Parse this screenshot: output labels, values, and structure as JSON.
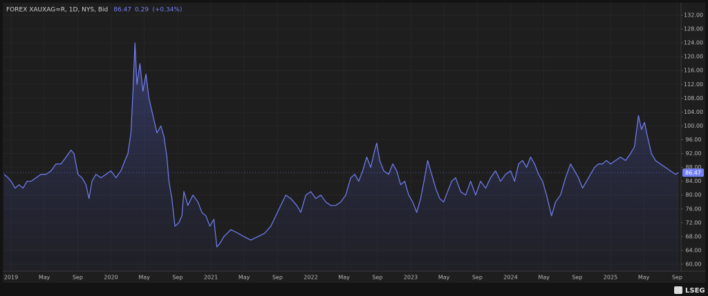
{
  "chart_data": {
    "type": "line",
    "title": "FOREX XAUXAG=R, 1D, NYS, Bid",
    "last": 86.47,
    "change": 0.29,
    "change_pct": "(+0.34%)",
    "brand": "LSEG",
    "x": [
      2018.93,
      2018.97,
      2019.0,
      2019.04,
      2019.08,
      2019.12,
      2019.16,
      2019.2,
      2019.25,
      2019.3,
      2019.35,
      2019.4,
      2019.45,
      2019.5,
      2019.55,
      2019.6,
      2019.63,
      2019.67,
      2019.71,
      2019.75,
      2019.78,
      2019.81,
      2019.85,
      2019.9,
      2019.95,
      2020.0,
      2020.05,
      2020.1,
      2020.14,
      2020.17,
      2020.2,
      2020.22,
      2020.24,
      2020.26,
      2020.29,
      2020.32,
      2020.35,
      2020.38,
      2020.42,
      2020.46,
      2020.5,
      2020.53,
      2020.56,
      2020.58,
      2020.61,
      2020.64,
      2020.68,
      2020.71,
      2020.73,
      2020.77,
      2020.82,
      2020.87,
      2020.91,
      2020.95,
      2020.99,
      2021.03,
      2021.06,
      2021.09,
      2021.13,
      2021.2,
      2021.27,
      2021.33,
      2021.4,
      2021.47,
      2021.54,
      2021.6,
      2021.65,
      2021.7,
      2021.75,
      2021.8,
      2021.86,
      2021.9,
      2021.95,
      2022.0,
      2022.05,
      2022.1,
      2022.15,
      2022.2,
      2022.25,
      2022.3,
      2022.35,
      2022.4,
      2022.44,
      2022.48,
      2022.52,
      2022.56,
      2022.6,
      2022.64,
      2022.66,
      2022.69,
      2022.73,
      2022.78,
      2022.82,
      2022.86,
      2022.9,
      2022.94,
      2022.98,
      2023.02,
      2023.06,
      2023.1,
      2023.14,
      2023.17,
      2023.21,
      2023.25,
      2023.29,
      2023.33,
      2023.37,
      2023.41,
      2023.45,
      2023.5,
      2023.55,
      2023.6,
      2023.65,
      2023.7,
      2023.75,
      2023.8,
      2023.85,
      2023.9,
      2023.95,
      2024.0,
      2024.04,
      2024.08,
      2024.12,
      2024.16,
      2024.2,
      2024.24,
      2024.28,
      2024.32,
      2024.36,
      2024.41,
      2024.45,
      2024.5,
      2024.55,
      2024.6,
      2024.64,
      2024.68,
      2024.72,
      2024.76,
      2024.8,
      2024.84,
      2024.88,
      2024.92,
      2024.96,
      2025.0,
      2025.05,
      2025.1,
      2025.15,
      2025.2,
      2025.24,
      2025.28,
      2025.31,
      2025.34,
      2025.37,
      2025.41,
      2025.45,
      2025.5,
      2025.55,
      2025.6,
      2025.65,
      2025.68
    ],
    "series": [
      {
        "color": "#7381f5",
        "values": [
          86,
          85,
          84,
          82,
          83,
          82,
          84,
          84,
          85,
          86,
          86,
          87,
          89,
          89,
          91,
          93,
          92,
          86,
          85,
          83,
          79,
          84,
          86,
          85,
          86,
          87,
          85,
          87,
          90,
          92,
          98,
          110,
          124,
          112,
          118,
          110,
          115,
          108,
          103,
          98,
          100,
          97,
          91,
          84,
          79,
          71,
          72,
          74,
          81,
          77,
          80,
          78,
          75,
          74,
          71,
          73,
          65,
          66,
          68,
          70,
          69,
          68,
          67,
          68,
          69,
          71,
          74,
          77,
          80,
          79,
          77,
          75,
          80,
          81,
          79,
          80,
          78,
          77,
          77,
          78,
          80,
          85,
          86,
          84,
          87,
          91,
          88,
          93,
          95,
          90,
          87,
          86,
          89,
          87,
          83,
          84,
          80,
          78,
          75,
          79,
          85,
          90,
          86,
          82,
          79,
          78,
          81,
          84,
          85,
          81,
          80,
          84,
          80,
          84,
          82,
          85,
          87,
          84,
          86,
          87,
          84,
          89,
          90,
          88,
          91,
          89,
          86,
          84,
          80,
          74,
          78,
          80,
          85,
          89,
          87,
          85,
          82,
          84,
          86,
          88,
          89,
          89,
          90,
          89,
          90,
          91,
          90,
          92,
          94,
          103,
          99,
          101,
          97,
          92,
          90,
          89,
          88,
          87,
          86,
          86.47
        ]
      }
    ],
    "xlim": [
      2018.924,
      2025.706
    ],
    "ylim": [
      58,
      134.8
    ],
    "xticks": [
      2019,
      {
        "value": 2019.333,
        "label": "May"
      },
      {
        "value": 2019.667,
        "label": "Sep"
      },
      2020,
      {
        "value": 2020.333,
        "label": "May"
      },
      {
        "value": 2020.667,
        "label": "Sep"
      },
      2021,
      {
        "value": 2021.333,
        "label": "May"
      },
      {
        "value": 2021.667,
        "label": "Sep"
      },
      2022,
      {
        "value": 2022.333,
        "label": "May"
      },
      {
        "value": 2022.667,
        "label": "Sep"
      },
      2023,
      {
        "value": 2023.333,
        "label": "May"
      },
      {
        "value": 2023.667,
        "label": "Sep"
      },
      2024,
      {
        "value": 2024.333,
        "label": "May"
      },
      {
        "value": 2024.667,
        "label": "Sep"
      },
      2025,
      {
        "value": 2025.333,
        "label": "May"
      },
      {
        "value": 2025.667,
        "label": "Sep"
      }
    ],
    "yticks": [
      {
        "value": 60,
        "label": "60.00"
      },
      {
        "value": 64,
        "label": "64.00"
      },
      {
        "value": 68,
        "label": "68.00"
      },
      {
        "value": 72,
        "label": "72.00"
      },
      {
        "value": 76,
        "label": "76.00"
      },
      {
        "value": 80,
        "label": "80.00"
      },
      {
        "value": 84,
        "label": "84.00"
      },
      {
        "value": 88,
        "label": "88.00"
      },
      {
        "value": 92,
        "label": "92.00"
      },
      {
        "value": 96,
        "label": "96.00"
      },
      {
        "value": 100,
        "label": "100.00"
      },
      {
        "value": 104,
        "label": "104.00"
      },
      {
        "value": 108,
        "label": "108.00"
      },
      {
        "value": 112,
        "label": "112.00"
      },
      {
        "value": 116,
        "label": "116.00"
      },
      {
        "value": 120,
        "label": "120.00"
      },
      {
        "value": 124,
        "label": "124.00"
      },
      {
        "value": 128,
        "label": "128.00"
      },
      {
        "value": 132,
        "label": "132.00"
      }
    ],
    "grid": true
  }
}
